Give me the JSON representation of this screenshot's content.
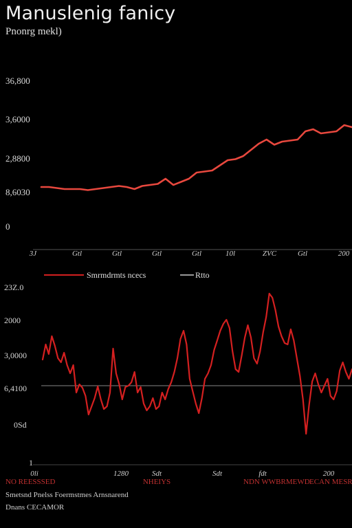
{
  "chart_data": [
    {
      "type": "line",
      "title": "Manuslenig fanicy",
      "subtitle": "Pnonrg mekl)",
      "y_tick_labels": [
        "36,800",
        "3,6000",
        "2,8800",
        "8,6030",
        "0"
      ],
      "x_tick_labels": [
        "3J",
        "Gtl",
        "Gtl",
        "Gtl",
        "Gtl",
        "10l",
        "ZVC",
        "Gtl",
        "200"
      ],
      "grid": false,
      "series": [
        {
          "color": "#e8483e",
          "values": [
            52,
            52,
            51,
            50,
            50,
            50,
            49,
            50,
            51,
            52,
            53,
            52,
            50,
            53,
            54,
            55,
            60,
            54,
            57,
            60,
            66,
            67,
            68,
            73,
            78,
            79,
            82,
            88,
            94,
            98,
            93,
            96,
            97,
            98,
            106,
            108,
            104,
            105,
            106,
            112,
            110
          ]
        }
      ]
    },
    {
      "type": "line",
      "legend": {
        "placement": "top",
        "entries": [
          {
            "label": "Smrmdrmts ncecs",
            "color": "#d42020"
          },
          {
            "label": "Rtto",
            "color": "#cccccc"
          }
        ]
      },
      "y_tick_labels": [
        "23Z.0",
        "2000",
        "3,0000",
        "6,4100",
        "0Sd",
        "1"
      ],
      "x_tick_labels": [
        "0li",
        "1280",
        "Sdt",
        "Sdt",
        "fdt",
        "200"
      ],
      "reference_line": {
        "color": "#888888"
      },
      "series": [
        {
          "name": "Smrmdrmts ncecs",
          "color": "#d42020",
          "values": [
            38,
            60,
            46,
            72,
            58,
            40,
            34,
            48,
            30,
            18,
            30,
            -10,
            2,
            -3,
            -15,
            -42,
            -30,
            -18,
            -1,
            -20,
            -34,
            -30,
            -10,
            54,
            18,
            2,
            -20,
            -2,
            0,
            5,
            20,
            -10,
            -2,
            -26,
            -36,
            -30,
            -18,
            -34,
            -30,
            -10,
            -20,
            -5,
            5,
            20,
            40,
            68,
            80,
            60,
            10,
            -8,
            -26,
            -40,
            -18,
            10,
            18,
            30,
            52,
            66,
            80,
            90,
            96,
            84,
            50,
            24,
            20,
            44,
            70,
            88,
            70,
            40,
            32,
            50,
            78,
            100,
            134,
            128,
            110,
            86,
            72,
            62,
            60,
            82,
            66,
            40,
            14,
            -20,
            -70,
            -28,
            6,
            18,
            2,
            -10,
            0,
            10,
            -15,
            -20,
            -8,
            22,
            34,
            20,
            10,
            24
          ]
        }
      ]
    }
  ],
  "footer": {
    "x_category_labels": [
      "NO REESSSED",
      "NHEIYS",
      "NDN WWBRMEWD",
      "ECAN MESRE"
    ],
    "line1": "Smetsnd Pnelss Foermstmes Arnsnarend",
    "line2": "Dnans CECAMOR"
  }
}
